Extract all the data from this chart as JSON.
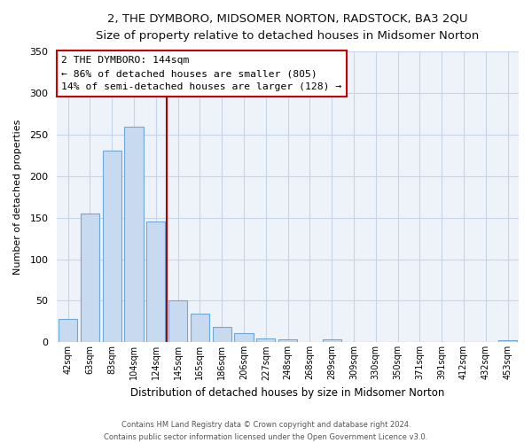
{
  "title": "2, THE DYMBORO, MIDSOMER NORTON, RADSTOCK, BA3 2QU",
  "subtitle": "Size of property relative to detached houses in Midsomer Norton",
  "xlabel": "Distribution of detached houses by size in Midsomer Norton",
  "ylabel": "Number of detached properties",
  "bar_labels": [
    "42sqm",
    "63sqm",
    "83sqm",
    "104sqm",
    "124sqm",
    "145sqm",
    "165sqm",
    "186sqm",
    "206sqm",
    "227sqm",
    "248sqm",
    "268sqm",
    "289sqm",
    "309sqm",
    "330sqm",
    "350sqm",
    "371sqm",
    "391sqm",
    "412sqm",
    "432sqm",
    "453sqm"
  ],
  "bar_values": [
    28,
    155,
    231,
    259,
    145,
    50,
    35,
    18,
    11,
    5,
    4,
    0,
    4,
    0,
    0,
    0,
    0,
    0,
    0,
    0,
    3
  ],
  "bar_face_color": "#c8daf0",
  "bar_edge_color": "#6fa8d8",
  "vline_color": "#aa0000",
  "ylim": [
    0,
    350
  ],
  "yticks": [
    0,
    50,
    100,
    150,
    200,
    250,
    300,
    350
  ],
  "annotation_title": "2 THE DYMBORO: 144sqm",
  "annotation_line1": "← 86% of detached houses are smaller (805)",
  "annotation_line2": "14% of semi-detached houses are larger (128) →",
  "annotation_box_color": "#ffffff",
  "annotation_box_edge": "#cc0000",
  "plot_bg_color": "#eef3fa",
  "grid_color": "#c8d4e8",
  "footer1": "Contains HM Land Registry data © Crown copyright and database right 2024.",
  "footer2": "Contains public sector information licensed under the Open Government Licence v3.0."
}
